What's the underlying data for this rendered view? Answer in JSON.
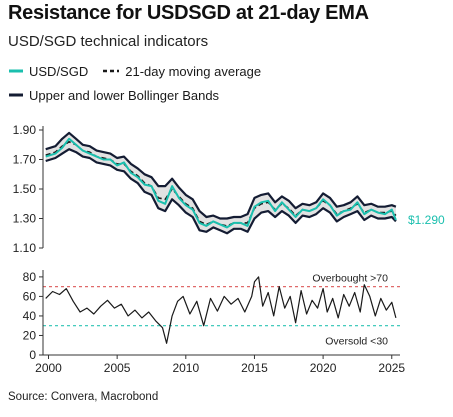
{
  "header": {
    "title": "Resistance for USDSGD at 21-day EMA",
    "subtitle": "USD/SGD technical indicators"
  },
  "legend": {
    "usdsgd": "USD/SGD",
    "ma21": "21-day moving average",
    "bollinger": "Upper and lower Bollinger Bands"
  },
  "source": "Source: Convera, Macrobond",
  "colors": {
    "spot": "#1abfae",
    "ma": "#1a1a1a",
    "bands": "#141c33",
    "band_fill": "#e2e2e2",
    "overbought": "#e06a6a",
    "oversold": "#2bc4b4"
  },
  "chart_data": [
    {
      "type": "line",
      "title": "USD/SGD technical indicators",
      "x": [
        1999.8,
        2000.5,
        2001.0,
        2001.5,
        2002.0,
        2002.5,
        2003.0,
        2003.5,
        2004.0,
        2004.5,
        2005.0,
        2005.5,
        2006.0,
        2006.5,
        2007.0,
        2007.5,
        2008.0,
        2008.5,
        2009.0,
        2009.5,
        2010.0,
        2010.5,
        2011.0,
        2011.5,
        2012.0,
        2012.5,
        2013.0,
        2013.5,
        2014.0,
        2014.5,
        2015.0,
        2015.5,
        2016.0,
        2016.5,
        2017.0,
        2017.5,
        2018.0,
        2018.5,
        2019.0,
        2019.5,
        2020.0,
        2020.5,
        2021.0,
        2021.5,
        2022.0,
        2022.5,
        2023.0,
        2023.5,
        2024.0,
        2024.5,
        2025.0,
        2025.3
      ],
      "series": [
        {
          "name": "USD/SGD",
          "values": [
            1.72,
            1.74,
            1.78,
            1.84,
            1.8,
            1.76,
            1.74,
            1.72,
            1.7,
            1.7,
            1.66,
            1.68,
            1.61,
            1.58,
            1.53,
            1.52,
            1.42,
            1.4,
            1.52,
            1.44,
            1.39,
            1.36,
            1.27,
            1.25,
            1.28,
            1.26,
            1.24,
            1.27,
            1.27,
            1.25,
            1.38,
            1.41,
            1.42,
            1.35,
            1.41,
            1.36,
            1.31,
            1.36,
            1.35,
            1.37,
            1.43,
            1.39,
            1.32,
            1.35,
            1.36,
            1.41,
            1.33,
            1.36,
            1.34,
            1.33,
            1.36,
            1.29
          ]
        },
        {
          "name": "21-day moving average",
          "values": [
            1.73,
            1.75,
            1.79,
            1.82,
            1.8,
            1.76,
            1.75,
            1.72,
            1.71,
            1.7,
            1.67,
            1.67,
            1.62,
            1.59,
            1.54,
            1.52,
            1.44,
            1.43,
            1.5,
            1.45,
            1.4,
            1.37,
            1.28,
            1.26,
            1.28,
            1.26,
            1.25,
            1.27,
            1.27,
            1.27,
            1.37,
            1.4,
            1.41,
            1.36,
            1.4,
            1.37,
            1.32,
            1.36,
            1.35,
            1.37,
            1.42,
            1.39,
            1.33,
            1.35,
            1.37,
            1.4,
            1.34,
            1.36,
            1.34,
            1.34,
            1.35,
            1.32
          ]
        },
        {
          "name": "Upper Bollinger Band",
          "values": [
            1.77,
            1.79,
            1.84,
            1.88,
            1.84,
            1.8,
            1.79,
            1.76,
            1.75,
            1.74,
            1.71,
            1.72,
            1.67,
            1.64,
            1.6,
            1.58,
            1.52,
            1.52,
            1.57,
            1.51,
            1.46,
            1.43,
            1.35,
            1.31,
            1.32,
            1.3,
            1.3,
            1.31,
            1.31,
            1.33,
            1.44,
            1.46,
            1.47,
            1.41,
            1.45,
            1.42,
            1.37,
            1.4,
            1.39,
            1.41,
            1.47,
            1.44,
            1.38,
            1.39,
            1.41,
            1.45,
            1.39,
            1.4,
            1.38,
            1.38,
            1.39,
            1.38
          ]
        },
        {
          "name": "Lower Bollinger Band",
          "values": [
            1.69,
            1.71,
            1.74,
            1.77,
            1.75,
            1.72,
            1.71,
            1.68,
            1.67,
            1.66,
            1.63,
            1.62,
            1.57,
            1.54,
            1.48,
            1.46,
            1.37,
            1.35,
            1.43,
            1.39,
            1.34,
            1.31,
            1.22,
            1.21,
            1.24,
            1.22,
            1.2,
            1.23,
            1.23,
            1.21,
            1.3,
            1.34,
            1.35,
            1.31,
            1.35,
            1.32,
            1.27,
            1.32,
            1.31,
            1.33,
            1.37,
            1.34,
            1.28,
            1.31,
            1.33,
            1.35,
            1.29,
            1.32,
            1.3,
            1.3,
            1.31,
            1.28
          ]
        }
      ],
      "last_value_label": "$1.290",
      "yticks": [
        "1.90",
        "1.70",
        "1.50",
        "1.30",
        "1.10"
      ],
      "ylim": [
        1.1,
        1.9
      ],
      "xlim": [
        1999.6,
        2025.6
      ],
      "grid": false
    },
    {
      "type": "line",
      "x": [
        1999.8,
        2000.3,
        2000.8,
        2001.3,
        2001.8,
        2002.3,
        2002.8,
        2003.3,
        2003.8,
        2004.3,
        2004.8,
        2005.3,
        2005.8,
        2006.3,
        2006.8,
        2007.3,
        2007.8,
        2008.3,
        2008.6,
        2009.0,
        2009.4,
        2009.8,
        2010.3,
        2010.8,
        2011.3,
        2011.8,
        2012.3,
        2012.8,
        2013.3,
        2013.8,
        2014.3,
        2014.8,
        2015.0,
        2015.3,
        2015.6,
        2016.0,
        2016.4,
        2016.8,
        2017.2,
        2017.6,
        2018.0,
        2018.4,
        2018.8,
        2019.2,
        2019.6,
        2020.0,
        2020.3,
        2020.7,
        2021.1,
        2021.5,
        2021.9,
        2022.3,
        2022.7,
        2023.0,
        2023.4,
        2023.8,
        2024.2,
        2024.6,
        2025.0,
        2025.3
      ],
      "series": [
        {
          "name": "RSI",
          "values": [
            58,
            65,
            62,
            68,
            55,
            44,
            48,
            42,
            50,
            56,
            48,
            52,
            40,
            46,
            38,
            44,
            35,
            28,
            12,
            40,
            55,
            60,
            42,
            55,
            30,
            58,
            45,
            60,
            52,
            58,
            44,
            60,
            75,
            80,
            50,
            64,
            40,
            70,
            48,
            60,
            33,
            66,
            42,
            56,
            48,
            68,
            44,
            58,
            38,
            62,
            50,
            64,
            44,
            72,
            60,
            40,
            58,
            46,
            54,
            38
          ]
        }
      ],
      "yticks": [
        "80",
        "60",
        "40",
        "20",
        "0"
      ],
      "ylim": [
        0,
        85
      ],
      "xticks": [
        "2000",
        "2005",
        "2010",
        "2015",
        "2020",
        "2025"
      ],
      "xlim": [
        1999.6,
        2025.6
      ],
      "annotations": [
        "Overbought >70",
        "Oversold <30"
      ],
      "thresholds": [
        70,
        30
      ],
      "grid": false
    }
  ]
}
